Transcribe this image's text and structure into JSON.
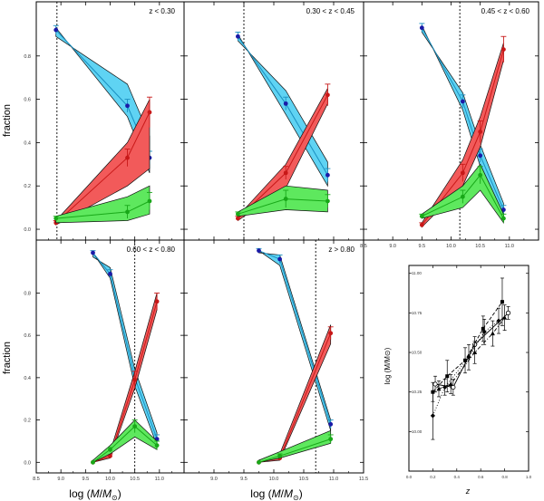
{
  "figure": {
    "ylabel": "fraction",
    "xlabel_prefix": "log (",
    "xlabel_M": "M",
    "xlabel_slash": "/",
    "xlabel_sun": "M",
    "xlabel_sun_sub": "⊙",
    "xlabel_suffix": ")",
    "inset_xlabel": "z",
    "inset_ylabel": "log (M/M⊙)"
  },
  "colors": {
    "cyan_fill": "#5fd3f3",
    "cyan_line": "#1a8fc0",
    "blue_point": "#1a1aa8",
    "red_fill": "#f25a5a",
    "red_line": "#c81818",
    "green_fill": "#5ee85e",
    "green_line": "#18a818",
    "axis": "#000000"
  },
  "chart_data": [
    {
      "type": "line",
      "title": "z < 0.30",
      "xlim": [
        8.5,
        11.5
      ],
      "ylim": [
        -0.05,
        1.05
      ],
      "xticks": [
        "",
        "",
        "",
        "",
        "",
        "",
        ""
      ],
      "yticks": [
        "0.0",
        "0.2",
        "0.4",
        "0.6",
        "0.8"
      ],
      "cutoff": 8.92,
      "series": [
        {
          "name": "cyan",
          "color": "cyan",
          "x": [
            8.9,
            10.35,
            10.8
          ],
          "y": [
            0.92,
            0.57,
            0.33
          ],
          "err": [
            0.02,
            0.03,
            0.03
          ],
          "band_upper": [
            0.93,
            0.52,
            0.26
          ],
          "band_lower": [
            0.89,
            0.67,
            0.43
          ]
        },
        {
          "name": "red",
          "color": "red",
          "x": [
            8.9,
            10.35,
            10.8
          ],
          "y": [
            0.03,
            0.33,
            0.54
          ],
          "err": [
            0.01,
            0.04,
            0.07
          ],
          "band_upper": [
            0.04,
            0.4,
            0.6
          ],
          "band_lower": [
            0.02,
            0.2,
            0.28
          ]
        },
        {
          "name": "green",
          "color": "green",
          "x": [
            8.9,
            10.35,
            10.8
          ],
          "y": [
            0.05,
            0.08,
            0.13
          ],
          "err": [
            0.01,
            0.03,
            0.04
          ],
          "band_upper": [
            0.06,
            0.15,
            0.2
          ],
          "band_lower": [
            0.03,
            0.04,
            0.07
          ]
        }
      ]
    },
    {
      "type": "line",
      "title": "0.30 < z < 0.45",
      "xlim": [
        8.5,
        11.5
      ],
      "ylim": [
        -0.05,
        1.05
      ],
      "xticks": [
        "",
        "",
        "",
        "",
        "",
        "",
        ""
      ],
      "yticks": [
        "",
        "",
        "",
        "",
        ""
      ],
      "cutoff": 9.5,
      "series": [
        {
          "name": "cyan",
          "color": "cyan",
          "x": [
            9.4,
            10.2,
            10.9
          ],
          "y": [
            0.89,
            0.58,
            0.25
          ],
          "err": [
            0.02,
            0.03,
            0.03
          ],
          "band_upper": [
            0.9,
            0.53,
            0.2
          ],
          "band_lower": [
            0.87,
            0.64,
            0.31
          ]
        },
        {
          "name": "red",
          "color": "red",
          "x": [
            9.4,
            10.2,
            10.9
          ],
          "y": [
            0.05,
            0.26,
            0.62
          ],
          "err": [
            0.01,
            0.03,
            0.05
          ],
          "band_upper": [
            0.06,
            0.3,
            0.65
          ],
          "band_lower": [
            0.04,
            0.19,
            0.58
          ]
        },
        {
          "name": "green",
          "color": "green",
          "x": [
            9.4,
            10.2,
            10.9
          ],
          "y": [
            0.07,
            0.14,
            0.13
          ],
          "err": [
            0.01,
            0.04,
            0.03
          ],
          "band_upper": [
            0.08,
            0.2,
            0.18
          ],
          "band_lower": [
            0.06,
            0.09,
            0.08
          ]
        }
      ]
    },
    {
      "type": "line",
      "title": "0.45 < z < 0.60",
      "xlim": [
        8.5,
        11.5
      ],
      "ylim": [
        -0.05,
        1.05
      ],
      "xticks": [
        "8.5",
        "9.0",
        "9.5",
        "10.0",
        "10.5",
        "11.0",
        ""
      ],
      "yticks": [
        "",
        "",
        "",
        "",
        ""
      ],
      "cutoff": 10.15,
      "series": [
        {
          "name": "cyan",
          "color": "cyan",
          "x": [
            9.5,
            10.2,
            10.5,
            10.9
          ],
          "y": [
            0.93,
            0.59,
            0.34,
            0.09
          ],
          "err": [
            0.02,
            0.03,
            0.03,
            0.02
          ],
          "band_upper": [
            0.94,
            0.55,
            0.29,
            0.06
          ],
          "band_lower": [
            0.91,
            0.63,
            0.39,
            0.12
          ]
        },
        {
          "name": "red",
          "color": "red",
          "x": [
            9.5,
            10.2,
            10.5,
            10.9
          ],
          "y": [
            0.02,
            0.26,
            0.45,
            0.83
          ],
          "err": [
            0.01,
            0.04,
            0.05,
            0.06
          ],
          "band_upper": [
            0.03,
            0.32,
            0.52,
            0.86
          ],
          "band_lower": [
            0.01,
            0.2,
            0.38,
            0.78
          ]
        },
        {
          "name": "green",
          "color": "green",
          "x": [
            9.5,
            10.2,
            10.5,
            10.9
          ],
          "y": [
            0.06,
            0.15,
            0.25,
            0.05
          ],
          "err": [
            0.01,
            0.03,
            0.04,
            0.02
          ],
          "band_upper": [
            0.07,
            0.2,
            0.3,
            0.07
          ],
          "band_lower": [
            0.05,
            0.1,
            0.18,
            0.03
          ]
        }
      ]
    },
    {
      "type": "line",
      "title": "0.60 < z < 0.80",
      "xlim": [
        8.5,
        11.5
      ],
      "ylim": [
        -0.05,
        1.05
      ],
      "xticks": [
        "8.5",
        "9.0",
        "9.5",
        "10.0",
        "10.5",
        "11.0",
        ""
      ],
      "yticks": [
        "0.0",
        "0.2",
        "0.4",
        "0.6",
        "0.8"
      ],
      "cutoff": 10.5,
      "series": [
        {
          "name": "cyan",
          "color": "cyan",
          "x": [
            9.65,
            10.0,
            10.5,
            10.95
          ],
          "y": [
            0.99,
            0.89,
            0.4,
            0.11
          ],
          "err": [
            0.01,
            0.02,
            0.03,
            0.02
          ],
          "band_upper": [
            0.99,
            0.87,
            0.36,
            0.08
          ],
          "band_lower": [
            0.97,
            0.92,
            0.44,
            0.14
          ]
        },
        {
          "name": "red",
          "color": "red",
          "x": [
            9.65,
            10.0,
            10.5,
            10.95
          ],
          "y": [
            0.0,
            0.03,
            0.39,
            0.76
          ],
          "err": [
            0.0,
            0.01,
            0.04,
            0.04
          ],
          "band_upper": [
            0.01,
            0.05,
            0.43,
            0.8
          ],
          "band_lower": [
            0.0,
            0.02,
            0.35,
            0.72
          ]
        },
        {
          "name": "green",
          "color": "green",
          "x": [
            9.65,
            10.0,
            10.5,
            10.95
          ],
          "y": [
            0.0,
            0.06,
            0.17,
            0.08
          ],
          "err": [
            0.0,
            0.01,
            0.03,
            0.02
          ],
          "band_upper": [
            0.01,
            0.08,
            0.2,
            0.1
          ],
          "band_lower": [
            0.0,
            0.04,
            0.12,
            0.06
          ]
        }
      ]
    },
    {
      "type": "line",
      "title": "z > 0.80",
      "xlim": [
        8.5,
        11.5
      ],
      "ylim": [
        -0.05,
        1.05
      ],
      "xticks": [
        "",
        "9.0",
        "9.5",
        "10.0",
        "10.5",
        "11.0",
        "11.5"
      ],
      "yticks": [
        "",
        "",
        "",
        "",
        ""
      ],
      "cutoff": 10.7,
      "series": [
        {
          "name": "cyan",
          "color": "cyan",
          "x": [
            9.75,
            10.1,
            10.95
          ],
          "y": [
            1.0,
            0.96,
            0.18
          ],
          "err": [
            0.01,
            0.02,
            0.02
          ],
          "band_upper": [
            1.0,
            0.93,
            0.15
          ],
          "band_lower": [
            0.99,
            0.98,
            0.2
          ]
        },
        {
          "name": "red",
          "color": "red",
          "x": [
            9.75,
            10.1,
            10.95
          ],
          "y": [
            0.0,
            0.02,
            0.61
          ],
          "err": [
            0.0,
            0.01,
            0.03
          ],
          "band_upper": [
            0.01,
            0.04,
            0.65
          ],
          "band_lower": [
            0.0,
            0.01,
            0.56
          ]
        },
        {
          "name": "green",
          "color": "green",
          "x": [
            9.75,
            10.1,
            10.95
          ],
          "y": [
            0.0,
            0.03,
            0.11
          ],
          "err": [
            0.0,
            0.01,
            0.02
          ],
          "band_upper": [
            0.01,
            0.05,
            0.15
          ],
          "band_lower": [
            0.0,
            0.02,
            0.09
          ]
        }
      ]
    },
    {
      "type": "scatter",
      "title": "",
      "xlabel": "z",
      "ylabel": "log (M/M⊙)",
      "xlim": [
        0.0,
        1.0
      ],
      "ylim": [
        9.75,
        11.05
      ],
      "xticks": [
        "0.0",
        "0.2",
        "0.4",
        "0.6",
        "0.8",
        "1.0"
      ],
      "xtick_vals": [
        0.0,
        0.2,
        0.4,
        0.6,
        0.8,
        1.0
      ],
      "yticks": [
        "10.00",
        "10.25",
        "10.50",
        "10.75",
        "11.00"
      ],
      "ytick_vals": [
        10.0,
        10.25,
        10.5,
        10.75,
        11.0
      ],
      "series": [
        {
          "name": "open circles",
          "marker": "circle-open",
          "dash": "solid",
          "x": [
            0.22,
            0.37,
            0.55,
            0.83
          ],
          "y": [
            10.3,
            10.28,
            10.55,
            10.75
          ],
          "err": [
            0.05,
            0.05,
            0.05,
            0.04
          ]
        },
        {
          "name": "filled squares",
          "marker": "square",
          "dash": "dashed",
          "x": [
            0.2,
            0.32,
            0.47,
            0.62,
            0.78
          ],
          "y": [
            10.25,
            10.35,
            10.45,
            10.65,
            10.82
          ],
          "err": [
            0.06,
            0.1,
            0.08,
            0.08,
            0.15
          ]
        },
        {
          "name": "filled diamonds",
          "marker": "diamond",
          "dash": "dotted",
          "x": [
            0.2,
            0.3,
            0.5,
            0.63,
            0.75
          ],
          "y": [
            10.1,
            10.28,
            10.47,
            10.63,
            10.7
          ],
          "err": [
            0.15,
            0.05,
            0.08,
            0.08,
            0.08
          ]
        },
        {
          "name": "filled triangles",
          "marker": "triangle",
          "dash": "dashdot",
          "x": [
            0.25,
            0.35,
            0.55,
            0.7,
            0.8
          ],
          "y": [
            10.27,
            10.3,
            10.5,
            10.62,
            10.72
          ],
          "err": [
            0.05,
            0.06,
            0.07,
            0.08,
            0.08
          ]
        }
      ]
    }
  ]
}
